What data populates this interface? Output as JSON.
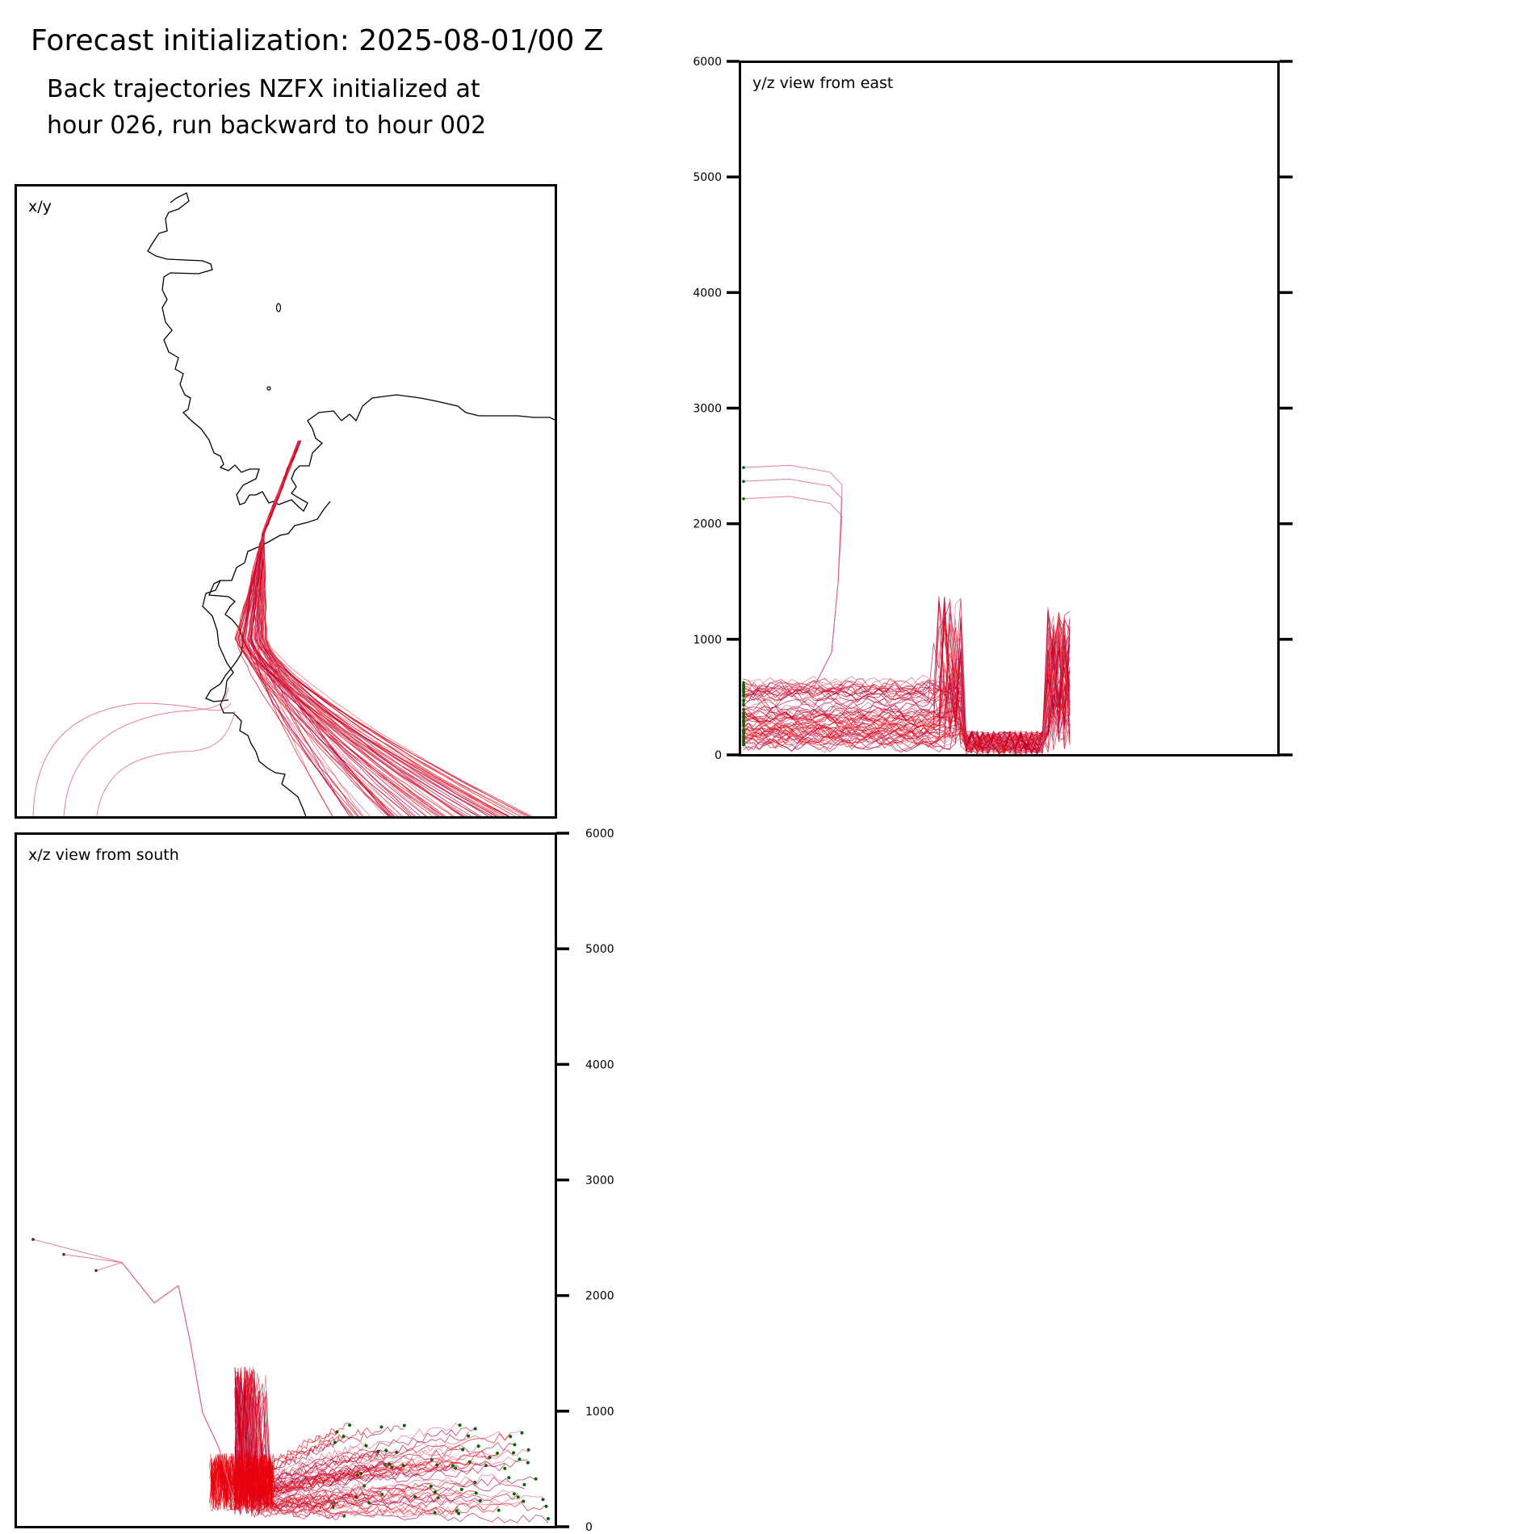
{
  "header": {
    "title": "Forecast initialization: 2025-08-01/00 Z",
    "subtitle_line1": "Back trajectories NZFX initialized at",
    "subtitle_line2": "hour 026, run backward to hour 002"
  },
  "colors": {
    "trajectory": "#e8000b",
    "trajectory_dark": "#b0003a",
    "trajectory_light": "#e0607a",
    "start_marker": "#006400",
    "coastline": "#000000",
    "axes": "#000000"
  },
  "chart_data": [
    {
      "panel": "xy",
      "type": "line",
      "label": "x/y",
      "description_series": [
        {
          "name": "",
          "values": []
        }
      ]
    },
    {
      "panel": "yz",
      "type": "line",
      "label": "y/z view from east",
      "ylim": [
        0,
        6000
      ],
      "y_ticks": [
        "0",
        "1000",
        "2000",
        "3000",
        "4000",
        "5000",
        "6000"
      ]
    },
    {
      "panel": "xz",
      "type": "line",
      "label": "x/z view from south",
      "ylim": [
        0,
        6000
      ],
      "y_ticks": [
        "0",
        "1000",
        "2000",
        "3000",
        "4000",
        "5000",
        "6000"
      ]
    }
  ]
}
